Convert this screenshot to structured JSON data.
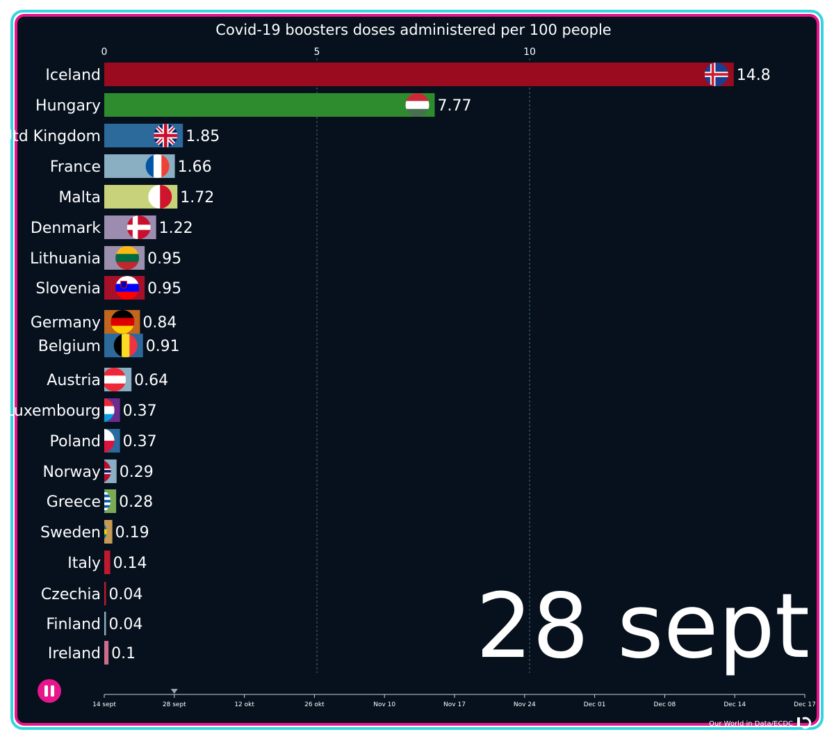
{
  "chart_data": {
    "type": "bar",
    "title": "Covid-19 boosters doses administered per 100 people",
    "xlim": [
      0,
      14.8
    ],
    "x_ticks": [
      "0",
      "5",
      "10"
    ],
    "current_date": "28 sept",
    "categories": [
      "Iceland",
      "Hungary",
      "Utd Kingdom",
      "France",
      "Malta",
      "Denmark",
      "Lithuania",
      "Slovenia",
      "Germany",
      "Belgium",
      "Austria",
      "Luxembourg",
      "Poland",
      "Norway",
      "Greece",
      "Sweden",
      "Italy",
      "Czechia",
      "Finland",
      "Ireland"
    ],
    "values": [
      14.8,
      7.77,
      1.85,
      1.66,
      1.72,
      1.22,
      0.95,
      0.95,
      0.84,
      0.91,
      0.64,
      0.37,
      0.37,
      0.29,
      0.28,
      0.19,
      0.14,
      0.04,
      0.04,
      0.1
    ],
    "value_labels": [
      "14.8",
      "7.77",
      "1.85",
      "1.66",
      "1.72",
      "1.22",
      "0.95",
      "0.95",
      "0.84",
      "0.91",
      "0.64",
      "0.37",
      "0.37",
      "0.29",
      "0.28",
      "0.19",
      "0.14",
      "0.04",
      "0.04",
      "0.1"
    ],
    "colors": [
      "#9b0b1f",
      "#2e8b2e",
      "#2b6a9a",
      "#8aaec2",
      "#c8d27a",
      "#9b8cb0",
      "#9c8fae",
      "#a8102a",
      "#c0661f",
      "#2b6a9a",
      "#8aaec2",
      "#6a2d8f",
      "#2b6a9a",
      "#8aaec2",
      "#7aaa55",
      "#c49a55",
      "#c0182e",
      "#c0182e",
      "#8aaec2",
      "#d06b8a"
    ],
    "flags": [
      "iceland",
      "hungary",
      "uk",
      "france",
      "malta",
      "denmark",
      "lithuania",
      "slovenia",
      "germany",
      "belgium",
      "austria",
      "luxembourg",
      "poland",
      "norway",
      "greece",
      "sweden",
      "italy",
      "czechia",
      "finland",
      "ireland"
    ]
  },
  "timeline": {
    "labels": [
      "14 sept",
      "28 sept",
      "12 okt",
      "26 okt",
      "Nov 10",
      "Nov 17",
      "Nov 24",
      "Dec 01",
      "Dec 08",
      "Dec 14",
      "Dec 17"
    ],
    "current_index": 1
  },
  "controls": {
    "pause_icon": "pause-icon",
    "pause_color": "#e8168c"
  },
  "source": "Our World in Data/ECDC",
  "logo_icon": "flourish-logo-icon",
  "theme": {
    "background": "#06111d",
    "outer_border": "#33d6e0",
    "inner_border": "#e8168c"
  }
}
